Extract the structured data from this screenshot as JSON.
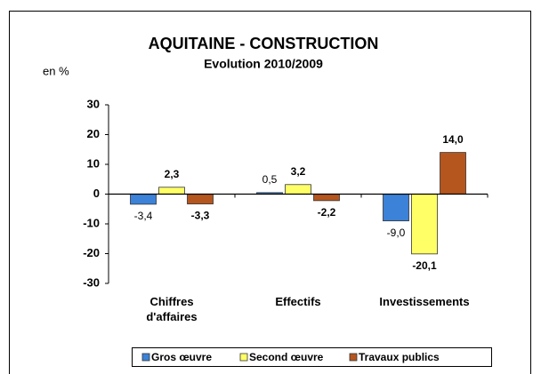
{
  "chart_data": {
    "type": "bar",
    "title": "AQUITAINE - CONSTRUCTION",
    "subtitle": "Evolution 2010/2009",
    "y_label": "en %",
    "categories": [
      "Chiffres d'affaires",
      "Effectifs",
      "Investissements"
    ],
    "series": [
      {
        "name": "Gros œuvre",
        "color": "#3c82d8",
        "values": [
          -3.4,
          0.5,
          -9.0
        ],
        "value_labels": [
          "-3,4",
          "0,5",
          "-9,0"
        ]
      },
      {
        "name": "Second œuvre",
        "color": "#ffff66",
        "values": [
          2.3,
          3.2,
          -20.1
        ],
        "value_labels": [
          "2,3",
          "3,2",
          "-20,1"
        ]
      },
      {
        "name": "Travaux publics",
        "color": "#b5561f",
        "values": [
          -3.3,
          -2.2,
          14.0
        ],
        "value_labels": [
          "-3,3",
          "-2,2",
          "14,0"
        ]
      }
    ],
    "ylim": [
      -30,
      30
    ],
    "yticks": [
      -30,
      -20,
      -10,
      0,
      10,
      20,
      30
    ],
    "grid": false,
    "legend": "bottom"
  }
}
